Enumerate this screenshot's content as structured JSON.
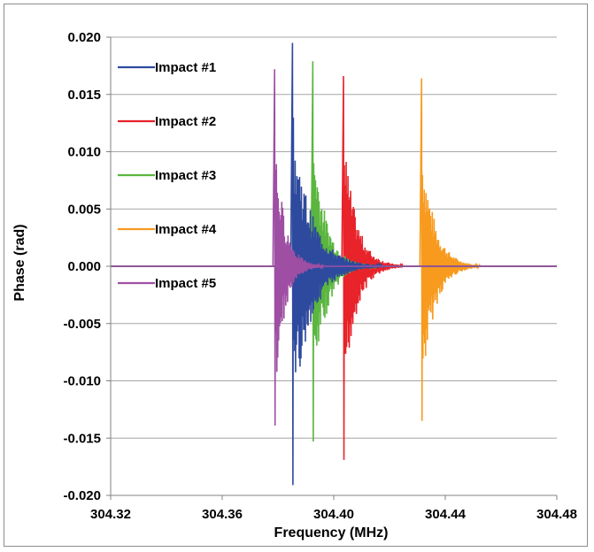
{
  "chart_data": {
    "type": "line",
    "title": "",
    "xlabel": "Frequency (MHz)",
    "ylabel": "Phase (rad)",
    "xlim": [
      304.32,
      304.48
    ],
    "ylim": [
      -0.02,
      0.02
    ],
    "x_ticks": [
      "304.32",
      "304.36",
      "304.40",
      "304.44",
      "304.48"
    ],
    "y_ticks": [
      "0.020",
      "0.015",
      "0.010",
      "0.005",
      "0.000",
      "-0.005",
      "-0.010",
      "-0.015",
      "-0.020"
    ],
    "grid": "horizontal",
    "legend_position": "top-left",
    "series": [
      {
        "name": "Impact #1",
        "color": "#2e4a9e",
        "peak_frequency": 304.3852,
        "max_phase": 0.0195,
        "min_phase": -0.0191,
        "decay_mhz": 0.0065
      },
      {
        "name": "Impact #2",
        "color": "#e8232a",
        "peak_frequency": 304.4035,
        "max_phase": 0.0166,
        "min_phase": -0.0169,
        "decay_mhz": 0.0045
      },
      {
        "name": "Impact #3",
        "color": "#5ab63f",
        "peak_frequency": 304.3925,
        "max_phase": 0.0179,
        "min_phase": -0.0153,
        "decay_mhz": 0.0045
      },
      {
        "name": "Impact #4",
        "color": "#f79a1e",
        "peak_frequency": 304.4315,
        "max_phase": 0.0164,
        "min_phase": -0.0135,
        "decay_mhz": 0.0045
      },
      {
        "name": "Impact #5",
        "color": "#9e4fa3",
        "peak_frequency": 304.3788,
        "max_phase": 0.0172,
        "min_phase": -0.0139,
        "decay_mhz": 0.0035
      }
    ]
  }
}
